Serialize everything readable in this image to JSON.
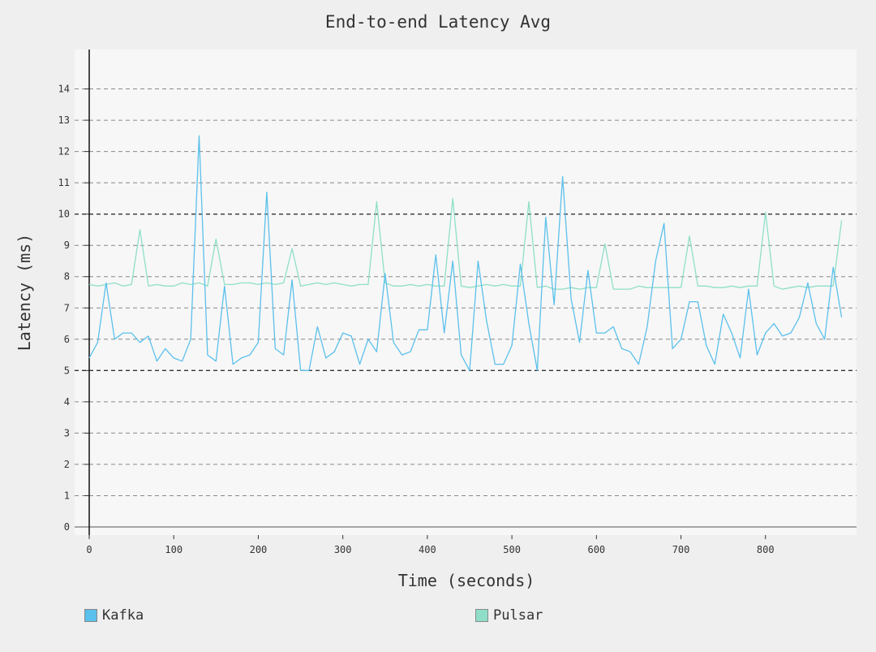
{
  "chart_data": {
    "type": "line",
    "title": "End-to-end Latency Avg",
    "xlabel": "Time (seconds)",
    "ylabel": "Latency (ms)",
    "xlim": [
      0,
      900
    ],
    "ylim": [
      0,
      15
    ],
    "xticks": [
      0,
      100,
      200,
      300,
      400,
      500,
      600,
      700,
      800
    ],
    "yticks": [
      0,
      1,
      2,
      3,
      4,
      5,
      6,
      7,
      8,
      9,
      10,
      11,
      12,
      13,
      14
    ],
    "grid": true,
    "legend_position": "bottom",
    "x": [
      0,
      10,
      20,
      30,
      40,
      50,
      60,
      70,
      80,
      90,
      100,
      110,
      120,
      130,
      140,
      150,
      160,
      170,
      180,
      190,
      200,
      210,
      220,
      230,
      240,
      250,
      260,
      270,
      280,
      290,
      300,
      310,
      320,
      330,
      340,
      350,
      360,
      370,
      380,
      390,
      400,
      410,
      420,
      430,
      440,
      450,
      460,
      470,
      480,
      490,
      500,
      510,
      520,
      530,
      540,
      550,
      560,
      570,
      580,
      590,
      600,
      610,
      620,
      630,
      640,
      650,
      660,
      670,
      680,
      690,
      700,
      710,
      720,
      730,
      740,
      750,
      760,
      770,
      780,
      790,
      800,
      810,
      820,
      830,
      840,
      850,
      860,
      870,
      880,
      890
    ],
    "series": [
      {
        "name": "Kafka",
        "color": "#5bc0eb",
        "values": [
          5.4,
          5.9,
          7.8,
          6.0,
          6.2,
          6.2,
          5.9,
          6.1,
          5.3,
          5.7,
          5.4,
          5.3,
          6.0,
          12.5,
          5.5,
          5.3,
          7.7,
          5.2,
          5.4,
          5.5,
          5.9,
          10.7,
          5.7,
          5.5,
          7.9,
          5.0,
          5.0,
          6.4,
          5.4,
          5.6,
          6.2,
          6.1,
          5.2,
          6.0,
          5.6,
          8.1,
          5.9,
          5.5,
          5.6,
          6.3,
          6.3,
          8.7,
          6.2,
          8.5,
          5.5,
          5.0,
          8.5,
          6.6,
          5.2,
          5.2,
          5.8,
          8.4,
          6.5,
          5.0,
          9.9,
          7.1,
          11.2,
          7.3,
          5.9,
          8.2,
          6.2,
          6.2,
          6.4,
          5.7,
          5.6,
          5.2,
          6.4,
          8.5,
          9.7,
          5.7,
          6.0,
          7.2,
          7.2,
          5.8,
          5.2,
          6.8,
          6.2,
          5.4,
          7.6,
          5.5,
          6.2,
          6.5,
          6.1,
          6.2,
          6.7,
          7.8,
          6.5,
          6.0,
          8.3,
          6.7
        ]
      },
      {
        "name": "Pulsar",
        "color": "#8fdfc8",
        "values": [
          7.75,
          7.7,
          7.75,
          7.8,
          7.7,
          7.75,
          9.5,
          7.7,
          7.75,
          7.7,
          7.7,
          7.8,
          7.75,
          7.8,
          7.7,
          9.2,
          7.75,
          7.75,
          7.8,
          7.8,
          7.75,
          7.8,
          7.75,
          7.8,
          8.9,
          7.7,
          7.75,
          7.8,
          7.75,
          7.8,
          7.75,
          7.7,
          7.75,
          7.75,
          10.4,
          7.8,
          7.7,
          7.7,
          7.75,
          7.7,
          7.75,
          7.7,
          7.7,
          10.5,
          7.7,
          7.65,
          7.7,
          7.75,
          7.7,
          7.75,
          7.7,
          7.7,
          10.4,
          7.65,
          7.7,
          7.6,
          7.6,
          7.65,
          7.6,
          7.65,
          7.65,
          9.05,
          7.6,
          7.6,
          7.6,
          7.7,
          7.65,
          7.65,
          7.65,
          7.65,
          7.65,
          9.3,
          7.7,
          7.7,
          7.65,
          7.65,
          7.7,
          7.65,
          7.7,
          7.7,
          10.05,
          7.7,
          7.6,
          7.65,
          7.7,
          7.65,
          7.7,
          7.7,
          7.7,
          9.8
        ]
      }
    ]
  }
}
